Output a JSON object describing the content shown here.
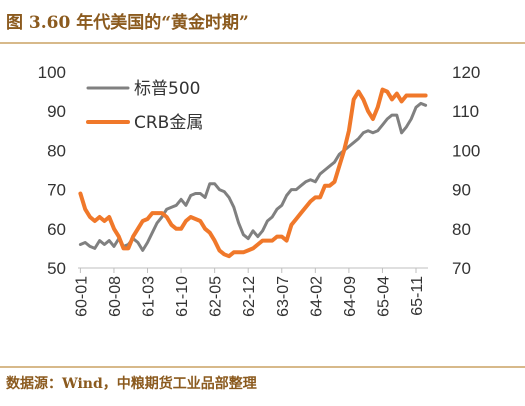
{
  "figure": {
    "title": "图 3.60 年代美国的“黄金时期”",
    "source": "数据源：Wind，中粮期货工业品部整理"
  },
  "chart_data": {
    "type": "line",
    "left_axis": {
      "min": 50,
      "max": 100,
      "ticks": [
        "50",
        "60",
        "70",
        "80",
        "90",
        "100"
      ]
    },
    "right_axis": {
      "min": 70,
      "max": 120,
      "ticks": [
        "70",
        "80",
        "90",
        "100",
        "110",
        "120"
      ]
    },
    "x_start": "1960-01",
    "x_tick_labels": [
      "60-01",
      "60-08",
      "61-03",
      "61-10",
      "62-05",
      "62-12",
      "63-07",
      "64-02",
      "64-09",
      "65-04",
      "65-11"
    ],
    "legend_position": "top-left",
    "series": [
      {
        "name": "标普500",
        "axis": "left",
        "color": "#808080",
        "values": [
          56,
          56.5,
          55.5,
          55,
          57,
          56,
          57,
          55.5,
          57.5,
          55.5,
          56,
          57.5,
          56.5,
          54.5,
          56.5,
          59,
          61.5,
          63,
          65,
          65.5,
          66,
          67.5,
          66,
          68.5,
          69,
          69,
          68,
          71.5,
          71.5,
          70,
          69.5,
          68,
          65.5,
          61.5,
          58.5,
          57.5,
          59.5,
          58,
          59.5,
          62,
          63,
          65,
          66,
          68.5,
          70,
          70,
          71,
          72,
          72.5,
          72,
          74,
          75,
          76,
          77,
          79,
          80,
          81,
          82,
          83,
          84.5,
          85,
          84.5,
          85,
          86.5,
          88,
          89,
          89,
          84.5,
          86,
          88,
          91,
          92,
          91.5
        ]
      },
      {
        "name": "CRB金属",
        "axis": "right",
        "color": "#f0782a",
        "values": [
          89,
          85,
          83,
          82,
          83,
          82,
          83,
          80,
          78,
          75,
          75,
          78,
          80,
          82,
          82.5,
          84,
          84,
          84,
          83,
          81,
          80,
          80,
          82,
          83,
          82.5,
          82,
          80,
          79,
          77,
          74.5,
          73.5,
          73,
          74,
          74,
          74,
          74.5,
          75,
          76,
          77,
          77,
          77,
          78,
          78,
          77,
          81,
          82.5,
          84,
          85.5,
          87,
          88,
          88,
          91,
          91,
          92,
          96,
          100,
          105,
          113,
          115,
          113,
          110,
          108,
          111,
          115.5,
          115,
          113,
          114.5,
          112.5,
          114,
          114,
          114,
          114,
          114
        ]
      }
    ]
  }
}
